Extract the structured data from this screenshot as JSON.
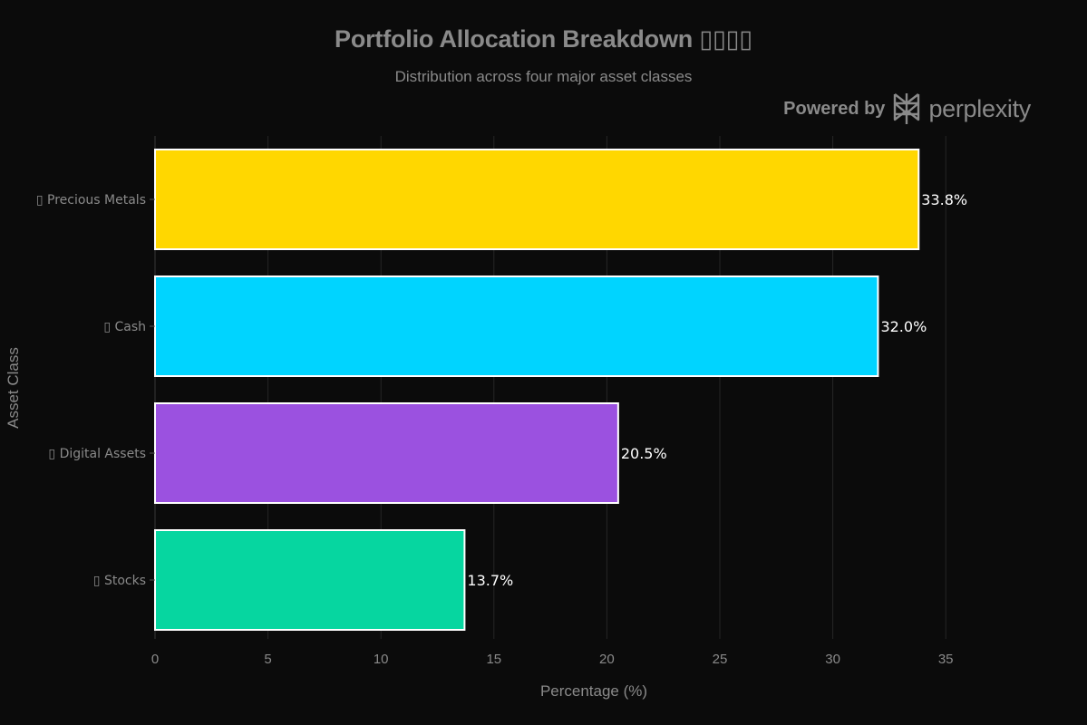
{
  "branding": {
    "powered_label": "Powered by",
    "name": "perplexity",
    "logo_icon": "perplexity-logo-icon"
  },
  "chart_data": {
    "type": "bar",
    "orientation": "horizontal",
    "title": "Portfolio Allocation Breakdown ▯▯▯▯",
    "subtitle": "Distribution across four major asset classes",
    "xlabel": "Percentage (%)",
    "ylabel": "Asset Class",
    "xlim": [
      0,
      36
    ],
    "xticks": [
      0,
      5,
      10,
      15,
      20,
      25,
      30,
      35
    ],
    "grid": "vertical",
    "categories": [
      "▯ Precious Metals",
      "▯ Cash",
      "▯ Digital Assets",
      "▯ Stocks"
    ],
    "values": [
      33.8,
      32.0,
      20.5,
      13.7
    ],
    "data_labels": [
      "33.8%",
      "32.0%",
      "20.5%",
      "13.7%"
    ],
    "colors": [
      "#FFD700",
      "#00D4FF",
      "#9B51E0",
      "#06D6A0"
    ],
    "bar_edge_color": "#FFFFFF",
    "background_color": "#0B0B0B",
    "grid_color": "#262626",
    "text_color": "#8A8A8A",
    "data_label_color": "#FFFFFF"
  }
}
